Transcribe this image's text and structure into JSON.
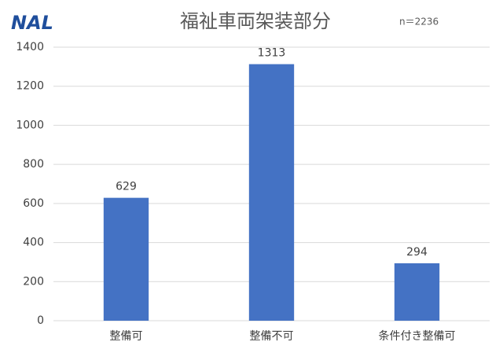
{
  "chart_data": {
    "type": "bar",
    "title": "福祉車両架装部分",
    "annotation": "n＝2236",
    "logo": "NAL",
    "categories": [
      "整備可",
      "整備不可",
      "条件付き整備可"
    ],
    "values": [
      629,
      1313,
      294
    ],
    "color": "#4472c4",
    "ylim": [
      0,
      1400
    ],
    "yticks": [
      0,
      200,
      400,
      600,
      800,
      1000,
      1200,
      1400
    ],
    "grid": true
  }
}
